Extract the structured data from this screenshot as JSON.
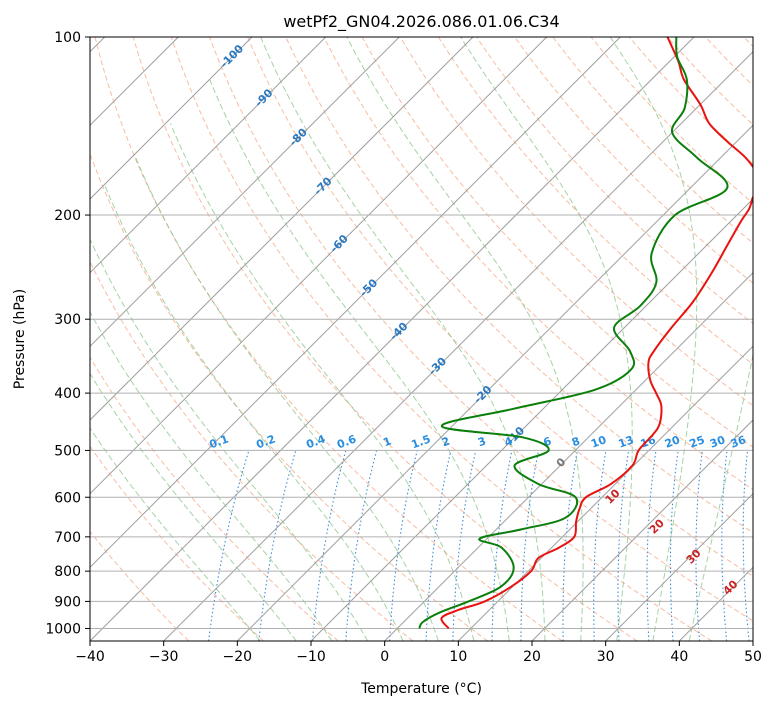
{
  "chart_data": {
    "type": "line",
    "chart_kind": "skew-T log-P diagram",
    "title": "wetPf2_GN04.2026.086.01.06.C34",
    "xlabel": "Temperature (°C)",
    "ylabel": "Pressure (hPa)",
    "xlim": [
      -40,
      50
    ],
    "ylim": [
      1050,
      100
    ],
    "y_scale": "log",
    "grid": true,
    "x_ticks": [
      "−40",
      "−30",
      "−20",
      "−10",
      "0",
      "10",
      "20",
      "30",
      "40",
      "50"
    ],
    "y_ticks": [
      "100",
      "200",
      "300",
      "400",
      "500",
      "600",
      "700",
      "800",
      "900",
      "1000"
    ],
    "colors": {
      "temperature": "#e8130f",
      "dewpoint": "#0b7f0b",
      "isotherm": "#9e9e9e",
      "dry_adiabat": "#f4a582",
      "moist_adiabat": "#7fbf7f",
      "mixing_ratio": "#3a8ed8",
      "isotherm_label": "#2a78c0",
      "dry_adiabat_label": "#cc2222",
      "mixing_ratio_label": "#2a8ee0"
    },
    "series": [
      {
        "name": "",
        "role": "temperature",
        "color": "#e8130f",
        "points": [
          [
            7.0,
            1000
          ],
          [
            4.6,
            960
          ],
          [
            5.8,
            930
          ],
          [
            8.2,
            900
          ],
          [
            9.8,
            850
          ],
          [
            10.4,
            800
          ],
          [
            9.6,
            760
          ],
          [
            11.0,
            730
          ],
          [
            11.6,
            700
          ],
          [
            9.8,
            660
          ],
          [
            8.6,
            630
          ],
          [
            7.8,
            600
          ],
          [
            9.4,
            570
          ],
          [
            9.8,
            530
          ],
          [
            8.6,
            500
          ],
          [
            8.4,
            470
          ],
          [
            7.8,
            450
          ],
          [
            5.6,
            420
          ],
          [
            3.2,
            400
          ],
          [
            0.6,
            380
          ],
          [
            -2.0,
            355
          ],
          [
            -2.8,
            340
          ],
          [
            -3.6,
            310
          ],
          [
            -4.2,
            280
          ],
          [
            -5.6,
            250
          ],
          [
            -7.2,
            225
          ],
          [
            -8.6,
            205
          ],
          [
            -9.2,
            195
          ],
          [
            -10.2,
            187
          ],
          [
            -10.8,
            180
          ],
          [
            -13.0,
            170
          ],
          [
            -16.6,
            160
          ],
          [
            -21.4,
            150
          ],
          [
            -26.2,
            140
          ],
          [
            -30.0,
            130
          ],
          [
            -35.6,
            118
          ],
          [
            -38.8,
            110
          ],
          [
            -43.6,
            100
          ]
        ]
      },
      {
        "name": "",
        "role": "dewpoint",
        "color": "#0b7f0b",
        "points": [
          [
            3.0,
            1000
          ],
          [
            2.6,
            975
          ],
          [
            3.6,
            940
          ],
          [
            6.0,
            900
          ],
          [
            8.4,
            850
          ],
          [
            7.6,
            790
          ],
          [
            3.2,
            730
          ],
          [
            -1.0,
            705
          ],
          [
            3.4,
            680
          ],
          [
            7.8,
            650
          ],
          [
            6.4,
            600
          ],
          [
            -0.4,
            570
          ],
          [
            -6.2,
            530
          ],
          [
            -3.6,
            500
          ],
          [
            -9.0,
            475
          ],
          [
            -21.4,
            455
          ],
          [
            -14.0,
            425
          ],
          [
            -5.6,
            395
          ],
          [
            -3.4,
            365
          ],
          [
            -6.0,
            340
          ],
          [
            -11.4,
            310
          ],
          [
            -10.8,
            285
          ],
          [
            -11.8,
            260
          ],
          [
            -16.4,
            232
          ],
          [
            -18.4,
            200
          ],
          [
            -15.0,
            180
          ],
          [
            -23.2,
            160
          ],
          [
            -30.0,
            145
          ],
          [
            -31.6,
            132
          ],
          [
            -35.2,
            118
          ],
          [
            -39.6,
            108
          ],
          [
            -42.4,
            100
          ]
        ]
      }
    ],
    "isotherm_labels": [
      "-100",
      "-90",
      "-80",
      "-70",
      "-60",
      "-50",
      "-40",
      "-30",
      "-20",
      "-10"
    ],
    "mixing_ratio_labels": [
      "0.1",
      "0.2",
      "0.4",
      "0.6",
      "1",
      "1.5",
      "2",
      "3",
      "4",
      "6",
      "8",
      "10",
      "13",
      "16",
      "20",
      "25",
      "30",
      "36"
    ],
    "dry_adiabat_labels": [
      "0",
      "10",
      "20",
      "30",
      "40"
    ]
  }
}
